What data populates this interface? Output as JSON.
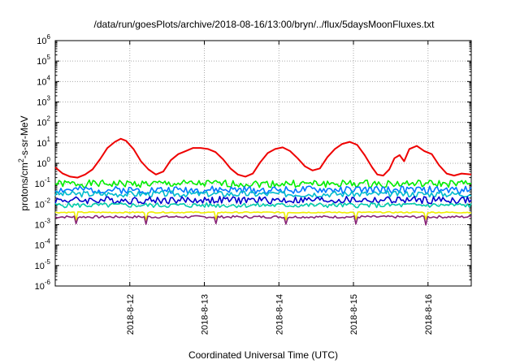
{
  "chart_data": {
    "type": "line",
    "title": "/data/run/goesPlots/archive/2018-08-16/13:00/bryn/../flux/5daysMoonFluxes.txt",
    "xlabel": "Coordinated Universal Time (UTC)",
    "ylabel_main": "protons/cm",
    "ylabel_sup": "2",
    "ylabel_tail": "-s-sr-MeV",
    "x_ticks": [
      "2018-8-12",
      "2018-8-13",
      "2018-8-14",
      "2018-8-15",
      "2018-8-16"
    ],
    "y_tick_base": "10",
    "y_tick_exponents": [
      "-6",
      "-5",
      "-4",
      "-3",
      "-2",
      "-1",
      "0",
      "1",
      "2",
      "3",
      "4",
      "5",
      "6"
    ],
    "y_scale": "log",
    "ylim_log10": [
      -6,
      6
    ],
    "xlim_days": [
      11.0,
      16.58
    ],
    "x_tick_days": [
      12,
      13,
      14,
      15,
      16
    ],
    "grid": true,
    "legend": "none",
    "series": [
      {
        "color": "#ee0000",
        "points": [
          [
            11.0,
            -0.2
          ],
          [
            11.1,
            -0.5
          ],
          [
            11.2,
            -0.65
          ],
          [
            11.3,
            -0.7
          ],
          [
            11.4,
            -0.55
          ],
          [
            11.5,
            -0.3
          ],
          [
            11.6,
            0.2
          ],
          [
            11.7,
            0.75
          ],
          [
            11.8,
            1.05
          ],
          [
            11.88,
            1.2
          ],
          [
            11.95,
            1.1
          ],
          [
            12.05,
            0.7
          ],
          [
            12.15,
            0.1
          ],
          [
            12.25,
            -0.3
          ],
          [
            12.35,
            -0.55
          ],
          [
            12.45,
            -0.4
          ],
          [
            12.55,
            0.15
          ],
          [
            12.65,
            0.45
          ],
          [
            12.75,
            0.6
          ],
          [
            12.85,
            0.75
          ],
          [
            12.95,
            0.75
          ],
          [
            13.05,
            0.7
          ],
          [
            13.15,
            0.55
          ],
          [
            13.25,
            0.2
          ],
          [
            13.35,
            -0.25
          ],
          [
            13.45,
            -0.55
          ],
          [
            13.55,
            -0.65
          ],
          [
            13.65,
            -0.5
          ],
          [
            13.75,
            0.05
          ],
          [
            13.85,
            0.5
          ],
          [
            13.95,
            0.7
          ],
          [
            14.05,
            0.78
          ],
          [
            14.15,
            0.6
          ],
          [
            14.25,
            0.25
          ],
          [
            14.35,
            -0.15
          ],
          [
            14.45,
            -0.35
          ],
          [
            14.55,
            -0.25
          ],
          [
            14.65,
            0.3
          ],
          [
            14.75,
            0.7
          ],
          [
            14.85,
            0.95
          ],
          [
            14.95,
            1.05
          ],
          [
            15.05,
            0.9
          ],
          [
            15.15,
            0.4
          ],
          [
            15.25,
            -0.2
          ],
          [
            15.32,
            -0.55
          ],
          [
            15.4,
            -0.6
          ],
          [
            15.48,
            -0.3
          ],
          [
            15.55,
            0.25
          ],
          [
            15.62,
            0.4
          ],
          [
            15.68,
            0.1
          ],
          [
            15.75,
            0.7
          ],
          [
            15.85,
            0.85
          ],
          [
            15.95,
            0.6
          ],
          [
            16.05,
            0.45
          ],
          [
            16.15,
            -0.1
          ],
          [
            16.25,
            -0.5
          ],
          [
            16.35,
            -0.6
          ],
          [
            16.45,
            -0.5
          ],
          [
            16.58,
            -0.55
          ]
        ]
      },
      {
        "color": "#00ee00",
        "base": -1.0,
        "amp": 0.18,
        "seed": 1
      },
      {
        "color": "#0077ff",
        "base": -1.3,
        "amp": 0.18,
        "seed": 2
      },
      {
        "color": "#00bbcc",
        "base": -1.5,
        "amp": 0.15,
        "seed": 3
      },
      {
        "color": "#0000cc",
        "base": -1.8,
        "amp": 0.18,
        "seed": 4
      },
      {
        "color": "#00ccaa",
        "base": -2.05,
        "amp": 0.12,
        "seed": 5
      },
      {
        "color": "#eeee00",
        "base": -2.4,
        "amp": 0.03,
        "seed": 6
      },
      {
        "color": "#882277",
        "base": -2.62,
        "amp": 0.06,
        "seed": 7
      }
    ]
  }
}
